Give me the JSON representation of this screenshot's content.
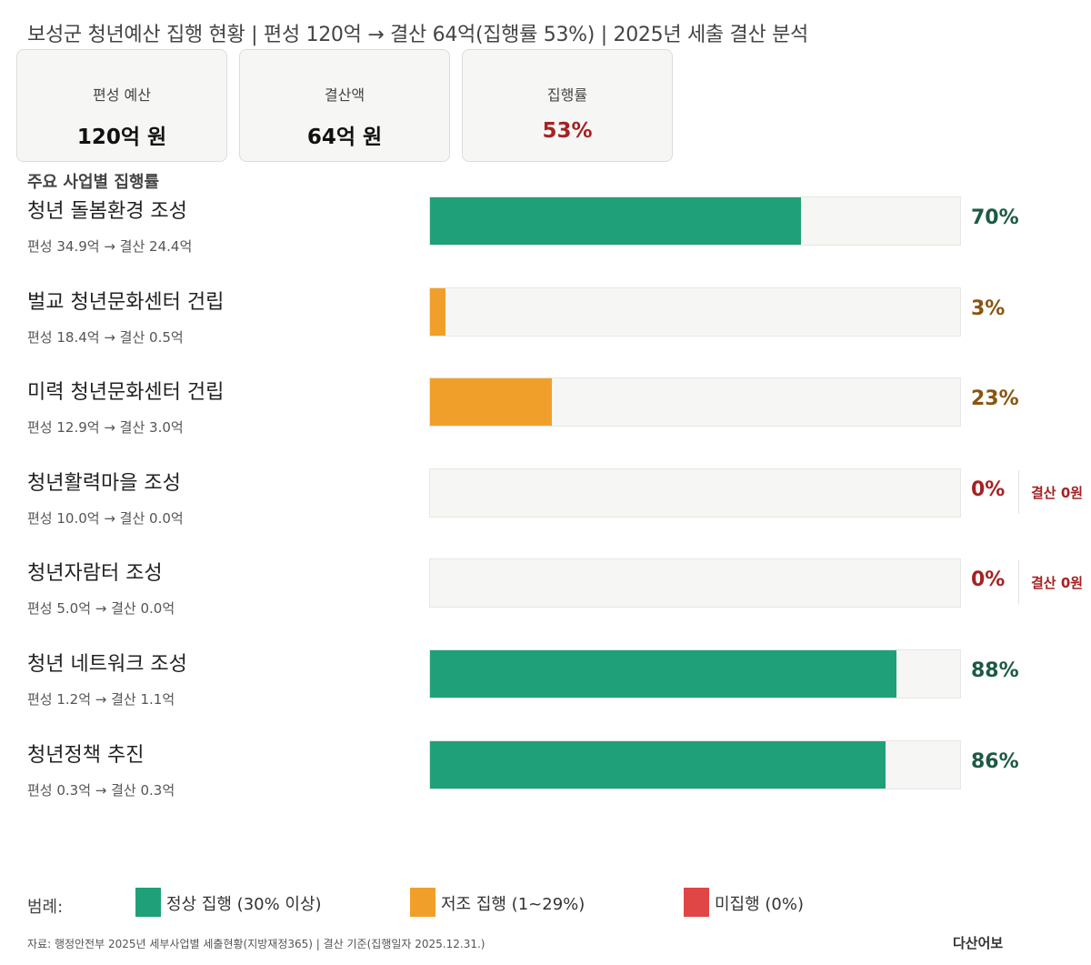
{
  "header": {
    "title": "보성군 청년예산 집행 현황 | 편성 120억 → 결산 64억(집행률 53%) | 2025년 세출 결산 분석"
  },
  "summary_cards": [
    {
      "label": "편성 예산",
      "value": "120억 원"
    },
    {
      "label": "결산액",
      "value": "64억 원"
    },
    {
      "label": "집행률",
      "value": "53%"
    }
  ],
  "section_title": "주요 사업별 집행률",
  "colors": {
    "normal": "#1fa078",
    "low": "#f0a02a",
    "none": "#e04646",
    "normal_text": "#1c5a45",
    "low_text": "#8a5510",
    "none_text": "#a52222",
    "track": "#f6f6f4"
  },
  "chart_data": {
    "type": "bar",
    "orientation": "horizontal",
    "xlim": [
      0,
      100
    ],
    "categories": [
      "청년 돌봄환경 조성",
      "벌교 청년문화센터 건립",
      "미력 청년문화센터 건립",
      "청년활력마을 조성",
      "청년자람터 조성",
      "청년 네트워크 조성",
      "청년정책 추진"
    ],
    "values": [
      70,
      3,
      23,
      0,
      0,
      88,
      86
    ],
    "value_labels": [
      "70%",
      "3%",
      "23%",
      "0%",
      "0%",
      "88%",
      "86%"
    ],
    "status": [
      "normal",
      "low",
      "low",
      "none",
      "none",
      "normal",
      "normal"
    ],
    "details": [
      "편성 34.9억 → 결산 24.4억",
      "편성 18.4억 → 결산 0.5억",
      "편성 12.9억 → 결산 3.0억",
      "편성 10.0억 → 결산 0.0억",
      "편성 5.0억 → 결산 0.0억",
      "편성 1.2억 → 결산 1.1억",
      "편성 0.3억 → 결산 0.3억"
    ],
    "notes": [
      "",
      "",
      "",
      "결산 0원",
      "결산 0원",
      "",
      ""
    ]
  },
  "legend": {
    "label": "범례:",
    "items": [
      {
        "key": "normal",
        "text": "정상 집행 (30% 이상)"
      },
      {
        "key": "low",
        "text": "저조 집행 (1~29%)"
      },
      {
        "key": "none",
        "text": "미집행 (0%)"
      }
    ]
  },
  "footer": {
    "source": "자료: 행정안전부 2025년 세부사업별 세출현황(지방재정365) | 결산 기준(집행일자 2025.12.31.)",
    "brand": "다산어보"
  }
}
